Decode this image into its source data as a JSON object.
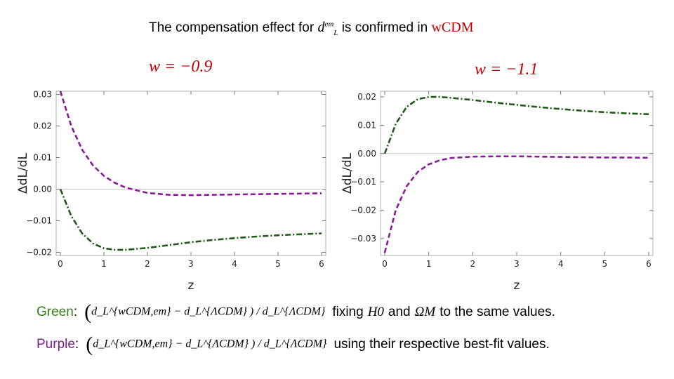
{
  "header": {
    "title_prefix": "The compensation effect for",
    "title_symbol": "d",
    "title_sup": "em",
    "title_sub": "L",
    "title_middle": "is confirmed in",
    "title_model": "wCDM"
  },
  "legend": {
    "green_label": "Green",
    "purple_label": "Purple",
    "colon": ":",
    "green_formula": "d_L^{wCDM,em} − d_L^{ΛCDM} ) / d_L^{ΛCDM}",
    "purple_formula": "d_L^{wCDM,em} − d_L^{ΛCDM} ) / d_L^{ΛCDM}",
    "green_text_a": "fixing",
    "green_H0": "H0",
    "green_text_b": "and",
    "green_Om": "ΩM",
    "green_text_c": "to the same values.",
    "purple_text": "using their respective best-fit values.",
    "green_color": "#1f6a10",
    "purple_color": "#7a1f8a"
  },
  "chart_data": [
    {
      "type": "line",
      "title": "w = −0.9",
      "xlabel": "z",
      "ylabel": "ΔdL/dL",
      "xlim": [
        0,
        6
      ],
      "ylim": [
        -0.021,
        0.031
      ],
      "xticks": [
        "0",
        "1",
        "2",
        "3",
        "4",
        "5",
        "6"
      ],
      "yticks": [
        "0.03",
        "0.02",
        "0.01",
        "0.00",
        "−0.01",
        "−0.02"
      ],
      "ytick_values": [
        0.03,
        0.02,
        0.01,
        0.0,
        -0.01,
        -0.02
      ],
      "series": [
        {
          "name": "Purple",
          "color": "#8b1a99",
          "dash": "dashed",
          "x": [
            0,
            0.25,
            0.5,
            0.75,
            1.0,
            1.25,
            1.5,
            2.0,
            2.5,
            3.0,
            3.5,
            4.0,
            4.5,
            5.0,
            5.5,
            6.0
          ],
          "y": [
            0.031,
            0.02,
            0.0125,
            0.0075,
            0.0042,
            0.002,
            0.0005,
            -0.0012,
            -0.0018,
            -0.0019,
            -0.0018,
            -0.0017,
            -0.0016,
            -0.0015,
            -0.0014,
            -0.0013
          ]
        },
        {
          "name": "Green",
          "color": "#1f5a16",
          "dash": "dashdot",
          "x": [
            0,
            0.25,
            0.5,
            0.75,
            1.0,
            1.25,
            1.5,
            2.0,
            2.5,
            3.0,
            3.5,
            4.0,
            4.5,
            5.0,
            5.5,
            6.0
          ],
          "y": [
            0.0,
            -0.0085,
            -0.014,
            -0.0172,
            -0.0187,
            -0.0192,
            -0.0192,
            -0.0186,
            -0.0177,
            -0.0168,
            -0.0161,
            -0.0155,
            -0.015,
            -0.0146,
            -0.0143,
            -0.014
          ]
        }
      ]
    },
    {
      "type": "line",
      "title": "w = −1.1",
      "xlabel": "z",
      "ylabel": "ΔdL/dL",
      "xlim": [
        0,
        6
      ],
      "ylim": [
        -0.036,
        0.022
      ],
      "xticks": [
        "0",
        "1",
        "2",
        "3",
        "4",
        "5",
        "6"
      ],
      "yticks": [
        "0.02",
        "0.01",
        "0.00",
        "−0.01",
        "−0.02",
        "−0.03"
      ],
      "ytick_values": [
        0.02,
        0.01,
        0.0,
        -0.01,
        -0.02,
        -0.03
      ],
      "series": [
        {
          "name": "Green",
          "color": "#1f5a16",
          "dash": "dashdot",
          "x": [
            0,
            0.25,
            0.5,
            0.75,
            1.0,
            1.25,
            1.5,
            2.0,
            2.5,
            3.0,
            3.5,
            4.0,
            4.5,
            5.0,
            5.5,
            6.0
          ],
          "y": [
            0.0,
            0.0105,
            0.0165,
            0.0192,
            0.02,
            0.02,
            0.0197,
            0.0189,
            0.018,
            0.0172,
            0.0164,
            0.0157,
            0.0151,
            0.0146,
            0.0142,
            0.0139
          ]
        },
        {
          "name": "Purple",
          "color": "#8b1a99",
          "dash": "dashed",
          "x": [
            0,
            0.25,
            0.5,
            0.75,
            1.0,
            1.25,
            1.5,
            2.0,
            2.5,
            3.0,
            3.5,
            4.0,
            4.5,
            5.0,
            5.5,
            6.0
          ],
          "y": [
            -0.035,
            -0.02,
            -0.0115,
            -0.0065,
            -0.0038,
            -0.0024,
            -0.0016,
            -0.0011,
            -0.001,
            -0.001,
            -0.0011,
            -0.0012,
            -0.0013,
            -0.0014,
            -0.0014,
            -0.0015
          ]
        }
      ]
    }
  ]
}
